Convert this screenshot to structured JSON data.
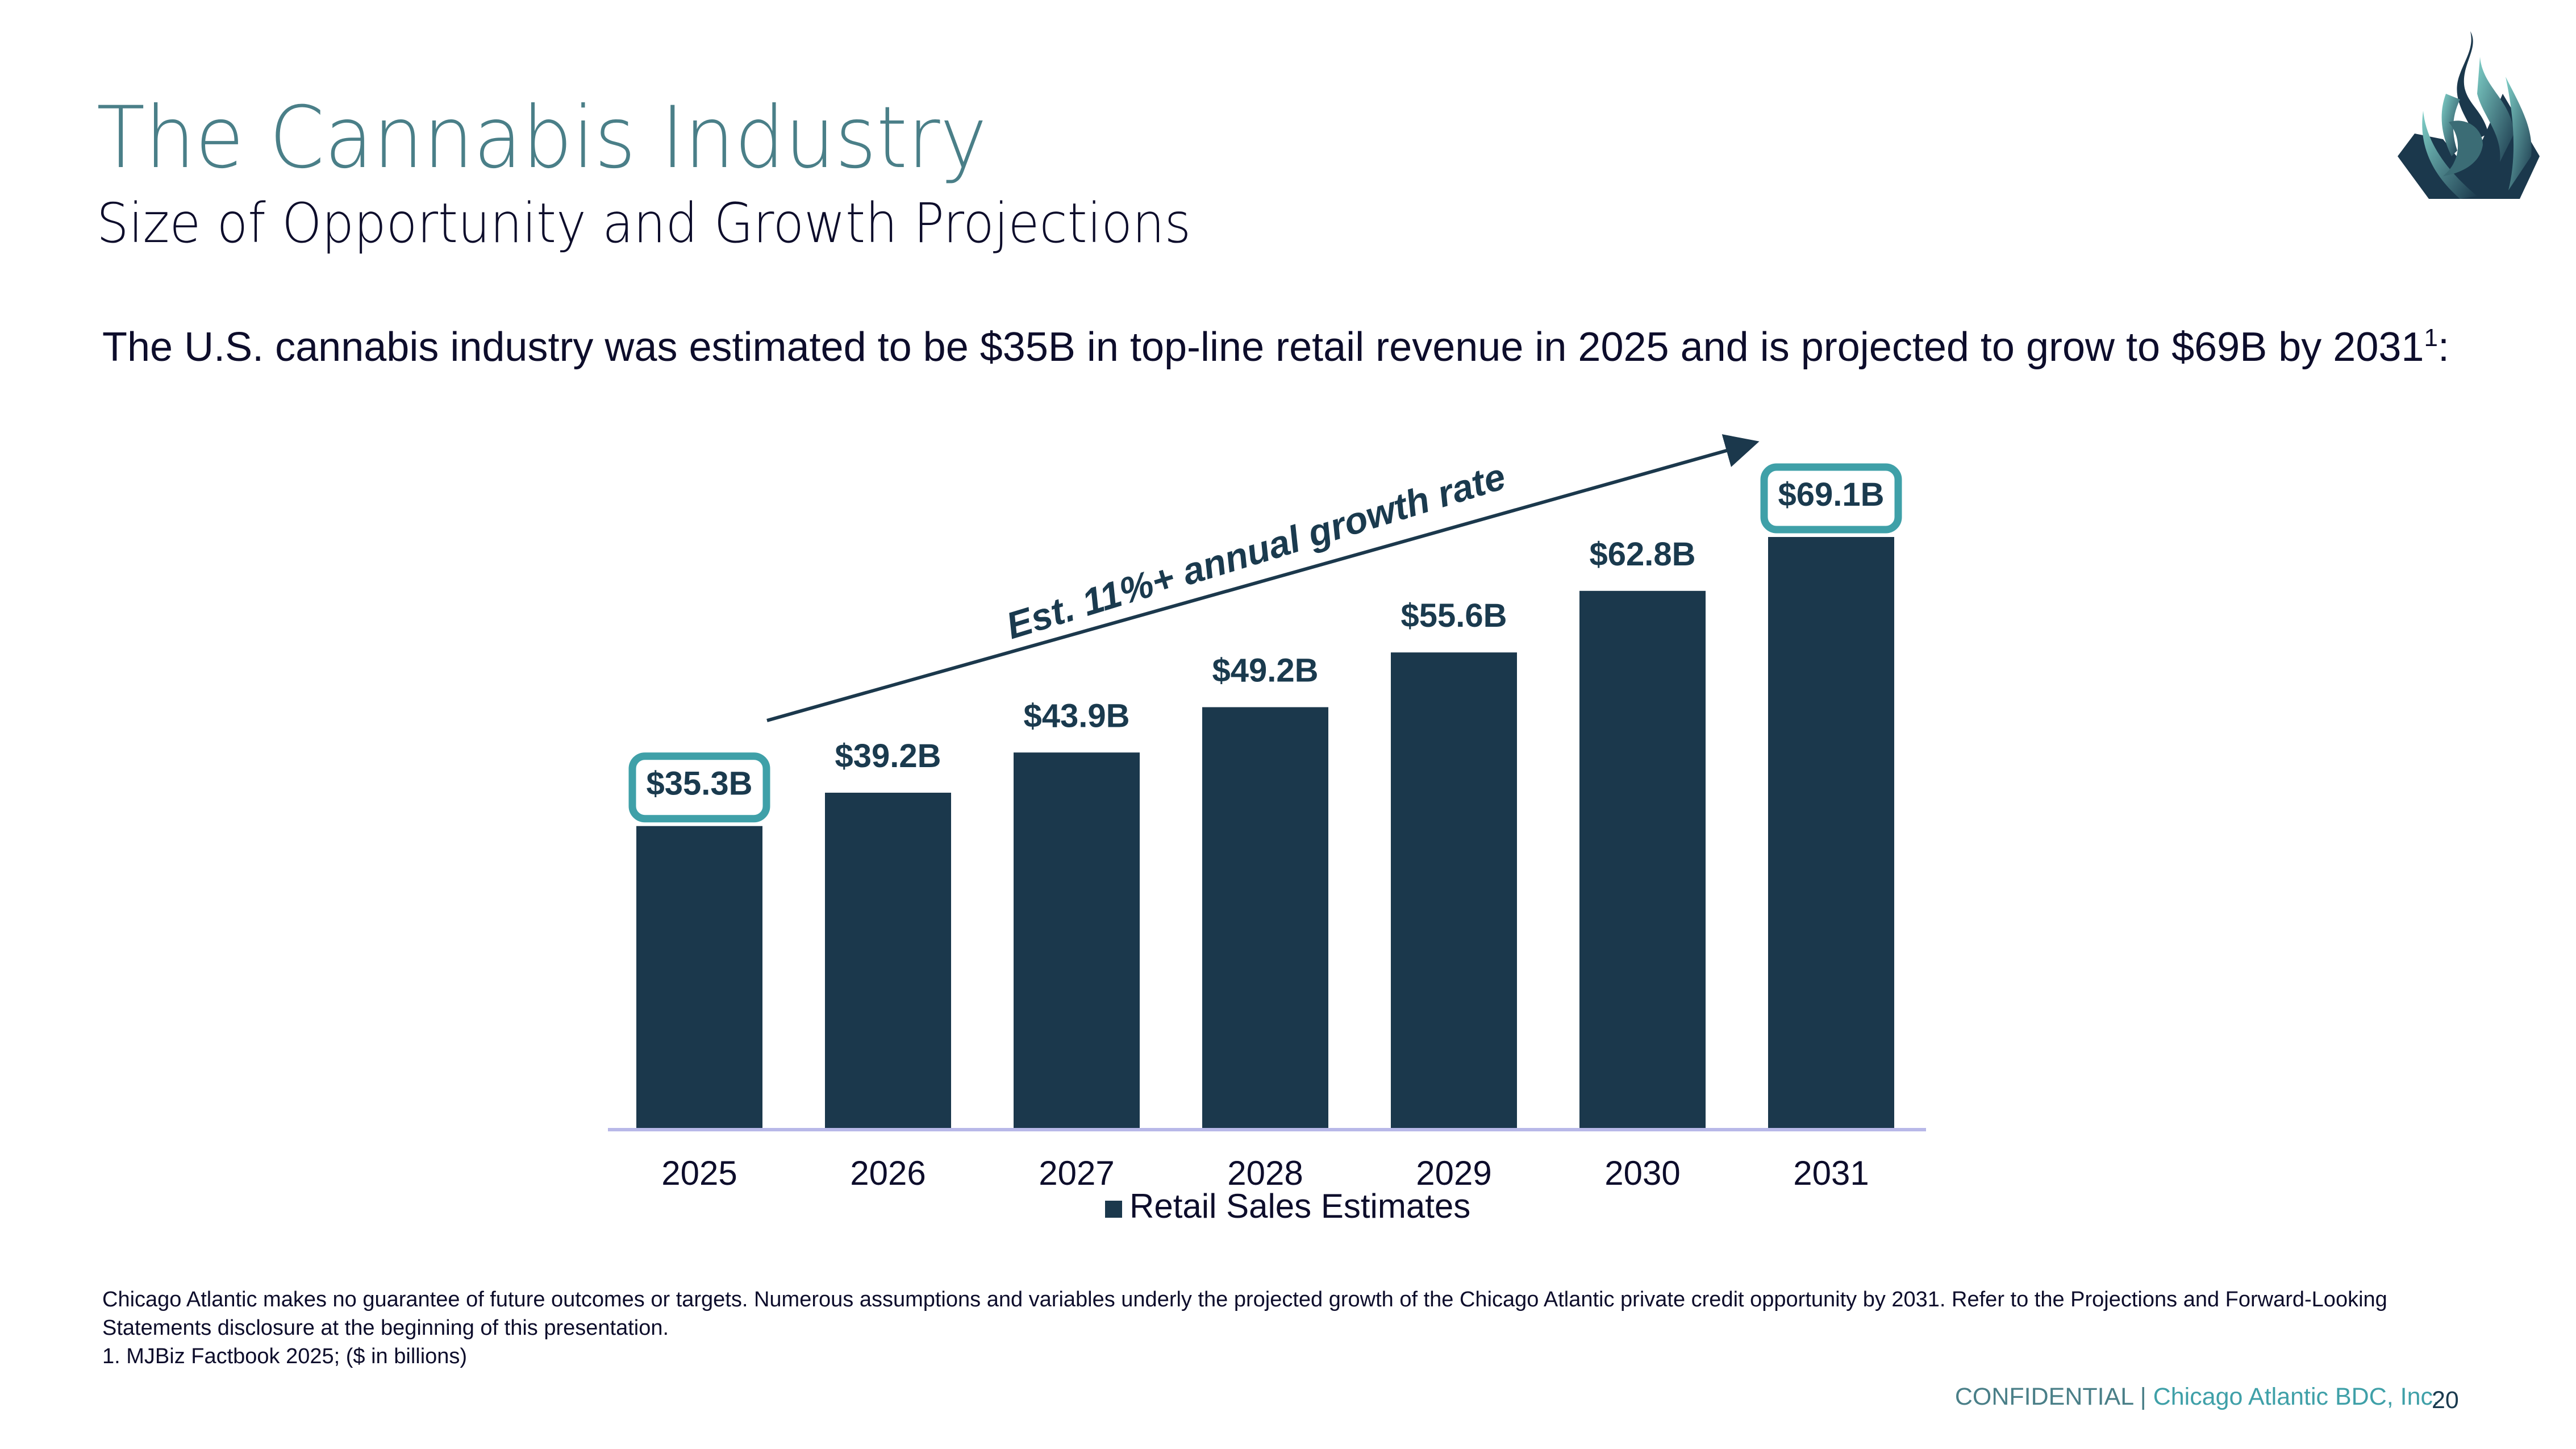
{
  "header": {
    "title": "The Cannabis Industry",
    "subtitle": "Size of Opportunity and Growth Projections"
  },
  "logo": {
    "icon": "flame-phoenix-logo-icon"
  },
  "intro": {
    "text": "The U.S. cannabis industry was estimated to be $35B in top-line retail revenue in 2025 and is projected to grow to $69B by 2031",
    "footnote_ref": "1",
    "suffix": ":"
  },
  "chart_data": {
    "type": "bar",
    "title": "",
    "xlabel": "",
    "ylabel": "",
    "categories": [
      "2025",
      "2026",
      "2027",
      "2028",
      "2029",
      "2030",
      "2031"
    ],
    "series": [
      {
        "name": "Retail Sales Estimates",
        "values": [
          35.3,
          39.2,
          43.9,
          49.2,
          55.6,
          62.8,
          69.1
        ]
      }
    ],
    "data_labels": [
      "$35.3B",
      "$39.2B",
      "$43.9B",
      "$49.2B",
      "$55.6B",
      "$62.8B",
      "$69.1B"
    ],
    "highlighted_labels": [
      "2025",
      "2031"
    ],
    "ylim": [
      0,
      75
    ],
    "grid": false,
    "legend": {
      "position": "bottom",
      "entries": [
        "Retail Sales Estimates"
      ]
    },
    "annotation": {
      "text": "Est. 11%+ annual growth rate",
      "type": "arrow"
    },
    "colors": {
      "bar": "#1b384c",
      "highlight_box": "#3fa0a8",
      "axis": "#b8b8e8"
    }
  },
  "disclaimer": {
    "lines": [
      "Chicago Atlantic makes no guarantee of future outcomes or targets. Numerous assumptions and variables underly the projected growth of the Chicago Atlantic private credit opportunity by 2031. Refer to the Projections and Forward-Looking Statements disclosure at the beginning of this presentation.",
      "1. MJBiz Factbook 2025; ($ in billions)"
    ]
  },
  "footer": {
    "confidential": "CONFIDENTIAL | ",
    "company": "Chicago Atlantic BDC, Inc.",
    "page_number": "20"
  }
}
